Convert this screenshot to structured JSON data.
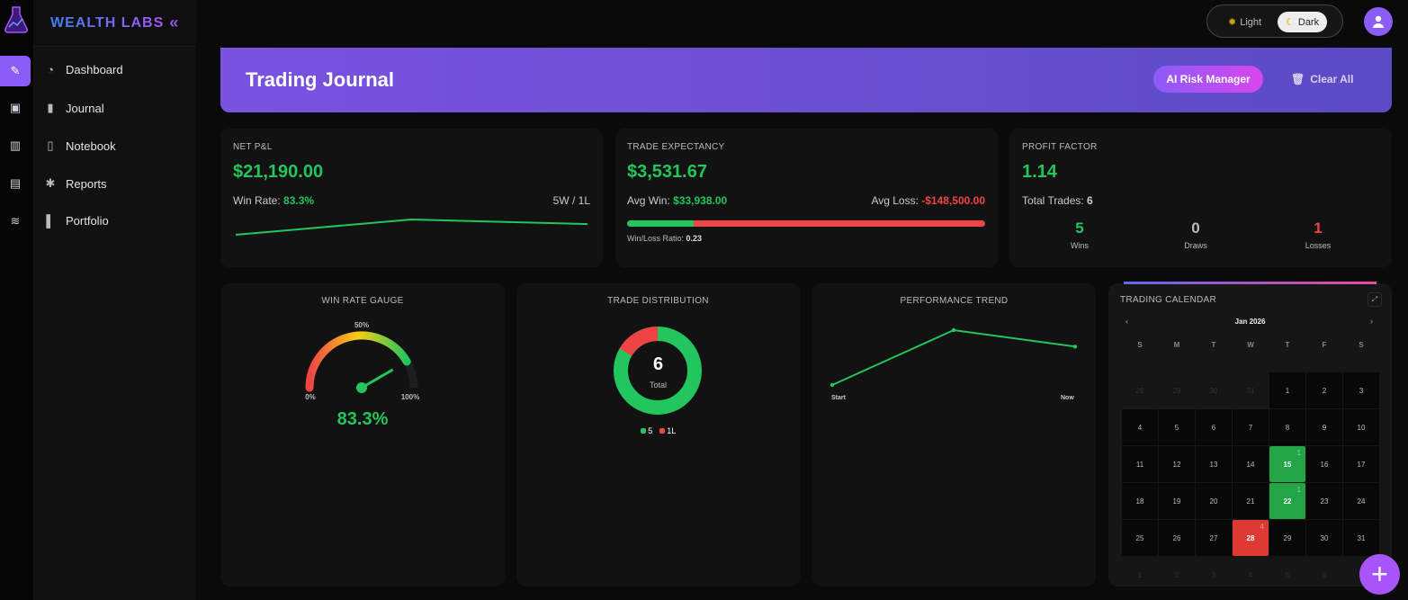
{
  "brand": {
    "name": "WEALTH LABS",
    "collapse_icon": "«"
  },
  "sidebar": {
    "items": [
      {
        "label": "Dashboard",
        "icon": "rss-icon"
      },
      {
        "label": "Journal",
        "icon": "book-icon"
      },
      {
        "label": "Notebook",
        "icon": "clipboard-icon"
      },
      {
        "label": "Reports",
        "icon": "bug-icon"
      },
      {
        "label": "Portfolio",
        "icon": "chart-icon"
      }
    ]
  },
  "theme": {
    "light": "Light",
    "dark": "Dark",
    "selected": "Dark"
  },
  "header": {
    "title": "Trading Journal",
    "ai_button": "AI Risk Manager",
    "clear_button": "Clear All"
  },
  "net_pnl": {
    "label": "NET P&L",
    "value": "$21,190.00",
    "win_rate_label": "Win Rate:",
    "win_rate": "83.3%",
    "record": "5W / 1L",
    "spark": [
      0,
      1,
      0.7
    ]
  },
  "expectancy": {
    "label": "TRADE EXPECTANCY",
    "value": "$3,531.67",
    "avg_win_label": "Avg Win:",
    "avg_win": "$33,938.00",
    "avg_loss_label": "Avg Loss:",
    "avg_loss": "-$148,500.00",
    "ratio_label": "Win/Loss Ratio:",
    "ratio": "0.23",
    "win_fraction": 0.186
  },
  "profit_factor": {
    "label": "PROFIT FACTOR",
    "value": "1.14",
    "total_label": "Total Trades:",
    "total": "6",
    "wins": "5",
    "wins_label": "Wins",
    "draws": "0",
    "draws_label": "Draws",
    "losses": "1",
    "losses_label": "Losses"
  },
  "gauge": {
    "title": "WIN RATE GAUGE",
    "min": "0%",
    "mid": "50%",
    "max": "100%",
    "value": "83.3%",
    "fraction": 0.833
  },
  "distribution": {
    "title": "TRADE DISTRIBUTION",
    "total": "6",
    "total_label": "Total",
    "wins": 5,
    "losses": 1,
    "legend_win": "5",
    "legend_loss": "1L"
  },
  "trend": {
    "title": "PERFORMANCE TREND",
    "start": "Start",
    "end": "Now",
    "values": [
      0,
      1,
      0.7
    ]
  },
  "calendar": {
    "title": "TRADING CALENDAR",
    "month": "Jan 2026",
    "weekdays": [
      "S",
      "M",
      "T",
      "W",
      "T",
      "F",
      "S"
    ],
    "days": [
      [
        "28",
        "m"
      ],
      [
        "29",
        "m"
      ],
      [
        "30",
        "m"
      ],
      [
        "31",
        "m"
      ],
      [
        "1",
        ""
      ],
      [
        "2",
        ""
      ],
      [
        "3",
        ""
      ],
      [
        "4",
        ""
      ],
      [
        "5",
        ""
      ],
      [
        "6",
        ""
      ],
      [
        "7",
        ""
      ],
      [
        "8",
        ""
      ],
      [
        "9",
        ""
      ],
      [
        "10",
        ""
      ],
      [
        "11",
        ""
      ],
      [
        "12",
        ""
      ],
      [
        "13",
        ""
      ],
      [
        "14",
        ""
      ],
      [
        "15",
        "w",
        "1"
      ],
      [
        "16",
        ""
      ],
      [
        "17",
        ""
      ],
      [
        "18",
        ""
      ],
      [
        "19",
        ""
      ],
      [
        "20",
        ""
      ],
      [
        "21",
        ""
      ],
      [
        "22",
        "w",
        "1"
      ],
      [
        "23",
        ""
      ],
      [
        "24",
        ""
      ],
      [
        "25",
        ""
      ],
      [
        "26",
        ""
      ],
      [
        "27",
        ""
      ],
      [
        "28",
        "l",
        "4"
      ],
      [
        "29",
        ""
      ],
      [
        "30",
        ""
      ],
      [
        "31",
        ""
      ],
      [
        "1",
        "m"
      ],
      [
        "2",
        "m"
      ],
      [
        "3",
        "m"
      ],
      [
        "4",
        "m"
      ],
      [
        "5",
        "m"
      ],
      [
        "6",
        "m"
      ],
      [
        "7",
        "m"
      ]
    ]
  },
  "colors": {
    "accent": "#8b5cf6",
    "win": "#22c55e",
    "loss": "#ef4444"
  }
}
